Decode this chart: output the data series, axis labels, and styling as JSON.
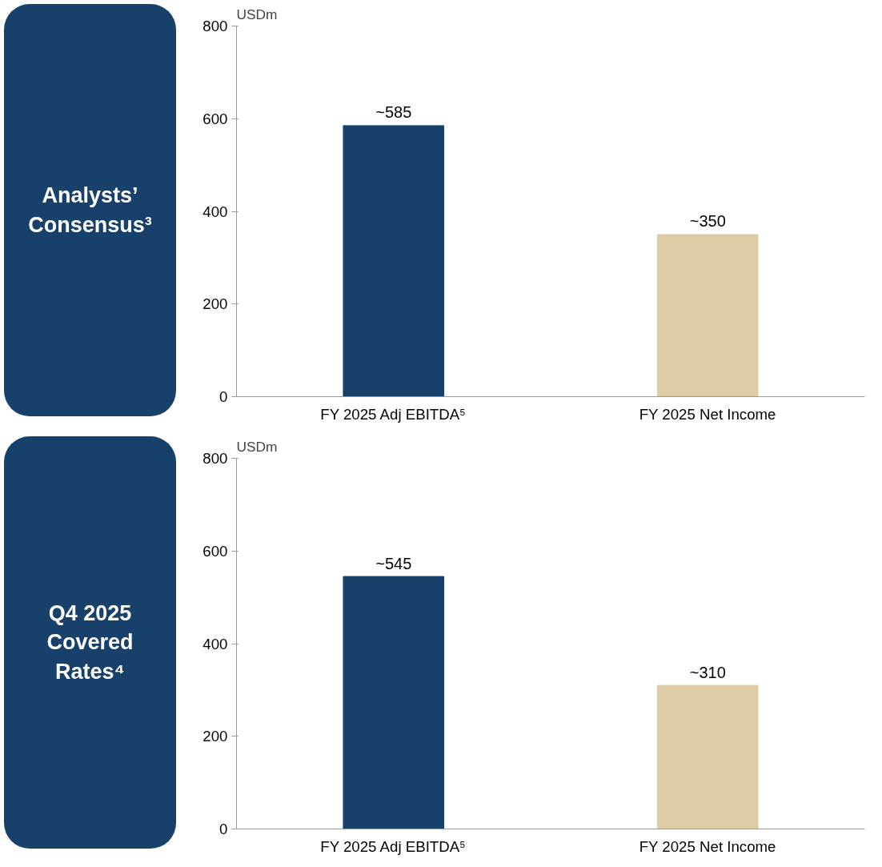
{
  "chart_data": [
    {
      "type": "bar",
      "title": "Analysts’ Consensus³",
      "ylabel": "USDm",
      "categories": [
        "FY 2025 Adj EBITDA⁵",
        "FY 2025 Net Income"
      ],
      "values": [
        585,
        350
      ],
      "colors": [
        "#17406a",
        "#ddcba4"
      ],
      "value_labels": [
        "~585",
        "~350"
      ],
      "ylim": [
        0,
        800
      ],
      "yticks": [
        0,
        200,
        400,
        600,
        800
      ],
      "grid": false
    },
    {
      "type": "bar",
      "title": "Q4 2025 Covered Rates⁴",
      "ylabel": "USDm",
      "categories": [
        "FY 2025 Adj EBITDA⁵",
        "FY 2025 Net Income"
      ],
      "values": [
        545,
        310
      ],
      "colors": [
        "#17406a",
        "#ddcba4"
      ],
      "value_labels": [
        "~545",
        "~310"
      ],
      "ylim": [
        0,
        800
      ],
      "yticks": [
        0,
        200,
        400,
        600,
        800
      ],
      "grid": false
    }
  ]
}
